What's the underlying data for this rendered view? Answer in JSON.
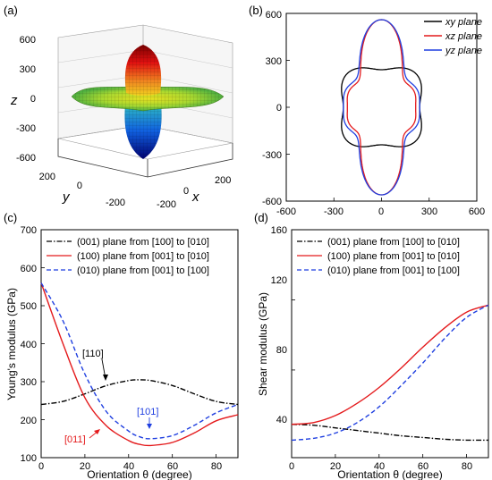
{
  "panels": {
    "a": {
      "label": "(a)",
      "axis_labels": {
        "z": "z",
        "y": "y",
        "x": "x"
      },
      "z_ticks": [
        "600",
        "300",
        "0",
        "-300",
        "-600"
      ],
      "y_ticks": [
        "200",
        "0",
        "-200"
      ],
      "x_ticks": [
        "-200",
        "0",
        "200"
      ]
    },
    "b": {
      "label": "(b)",
      "x_ticks": [
        "-600",
        "-300",
        "0",
        "300",
        "600"
      ],
      "y_ticks": [
        "600",
        "300",
        "0",
        "-300",
        "-600"
      ],
      "legend": [
        "xy plane",
        "xz plane",
        "yz plane"
      ]
    },
    "c": {
      "label": "(c)",
      "ylabel": "Young's modulus (GPa)",
      "xlabel": "Orientation θ (degree)",
      "x_ticks": [
        "0",
        "20",
        "40",
        "60",
        "80"
      ],
      "y_ticks": [
        "100",
        "200",
        "300",
        "400",
        "500",
        "600",
        "700"
      ],
      "legend": [
        "(001) plane from [100] to [010]",
        "(100) plane from [001] to [010]",
        "(010) plane from [001] to [100]"
      ],
      "annotations": [
        "[110]",
        "[101]",
        "[011]"
      ]
    },
    "d": {
      "label": "(d)",
      "ylabel": "Shear modulus (GPa)",
      "xlabel": "Orientation θ (degree)",
      "x_ticks": [
        "0",
        "20",
        "40",
        "60",
        "80"
      ],
      "y_ticks": [
        "40",
        "80",
        "120",
        "160"
      ],
      "legend": [
        "(001) plane from [100] to [010]",
        "(100) plane from [001] to [010]",
        "(010) plane from [001] to [100]"
      ]
    }
  },
  "colors": {
    "black": "#000000",
    "red": "#e41a1c",
    "blue": "#1f3fe0"
  },
  "chart_data": [
    {
      "type": "surface3d",
      "panel": "a",
      "axes": {
        "x": [
          -300,
          300
        ],
        "y": [
          -300,
          300
        ],
        "z": [
          -600,
          600
        ]
      },
      "description_values": {
        "max_z": 560,
        "in_plane_radius": 250
      }
    },
    {
      "type": "polar",
      "panel": "b",
      "xlim": [
        -600,
        600
      ],
      "ylim": [
        -600,
        600
      ],
      "series": [
        {
          "name": "xy plane",
          "color": "#000000",
          "shape": "rounded-square",
          "axis_value": 240,
          "diagonal_value": 305
        },
        {
          "name": "xz plane",
          "color": "#e41a1c",
          "shape": "four-lobe",
          "axis_x": 215,
          "axis_z": 560,
          "diagonal_value": 130
        },
        {
          "name": "yz plane",
          "color": "#1f3fe0",
          "shape": "four-lobe",
          "axis_x": 240,
          "axis_z": 560,
          "diagonal_value": 150
        }
      ]
    },
    {
      "type": "line",
      "panel": "c",
      "xlim": [
        0,
        90
      ],
      "ylim": [
        100,
        700
      ],
      "x": [
        0,
        10,
        20,
        30,
        40,
        45,
        50,
        60,
        70,
        80,
        90
      ],
      "series": [
        {
          "name": "(001) plane from [100] to [010]",
          "color": "#000000",
          "dash": "dashdot",
          "values": [
            240,
            248,
            268,
            290,
            303,
            305,
            303,
            290,
            268,
            248,
            240
          ]
        },
        {
          "name": "(100) plane from [001] to [010]",
          "color": "#e41a1c",
          "dash": "solid",
          "values": [
            560,
            400,
            258,
            183,
            145,
            135,
            132,
            140,
            165,
            197,
            213
          ]
        },
        {
          "name": "(010) plane from [001] to [100]",
          "color": "#1f3fe0",
          "dash": "dashed",
          "values": [
            560,
            460,
            320,
            220,
            170,
            155,
            150,
            158,
            185,
            218,
            240
          ]
        }
      ]
    },
    {
      "type": "line",
      "panel": "d",
      "xlim": [
        0,
        90
      ],
      "ylim": [
        30,
        160
      ],
      "x": [
        0,
        10,
        20,
        30,
        40,
        50,
        60,
        70,
        80,
        90
      ],
      "series": [
        {
          "name": "(001) plane from [100] to [010]",
          "color": "#000000",
          "dash": "dashdot",
          "values": [
            49,
            48.5,
            47,
            45.5,
            44,
            42.5,
            41.5,
            40.5,
            40,
            40
          ]
        },
        {
          "name": "(100) plane from [001] to [010]",
          "color": "#e41a1c",
          "dash": "solid",
          "values": [
            49,
            50,
            54,
            61,
            70,
            81,
            93,
            104,
            113,
            117
          ]
        },
        {
          "name": "(010) plane from [001] to [100]",
          "color": "#1f3fe0",
          "dash": "dashed",
          "values": [
            40,
            41,
            44,
            50,
            59,
            71,
            84,
            98,
            110,
            117
          ]
        }
      ]
    }
  ]
}
